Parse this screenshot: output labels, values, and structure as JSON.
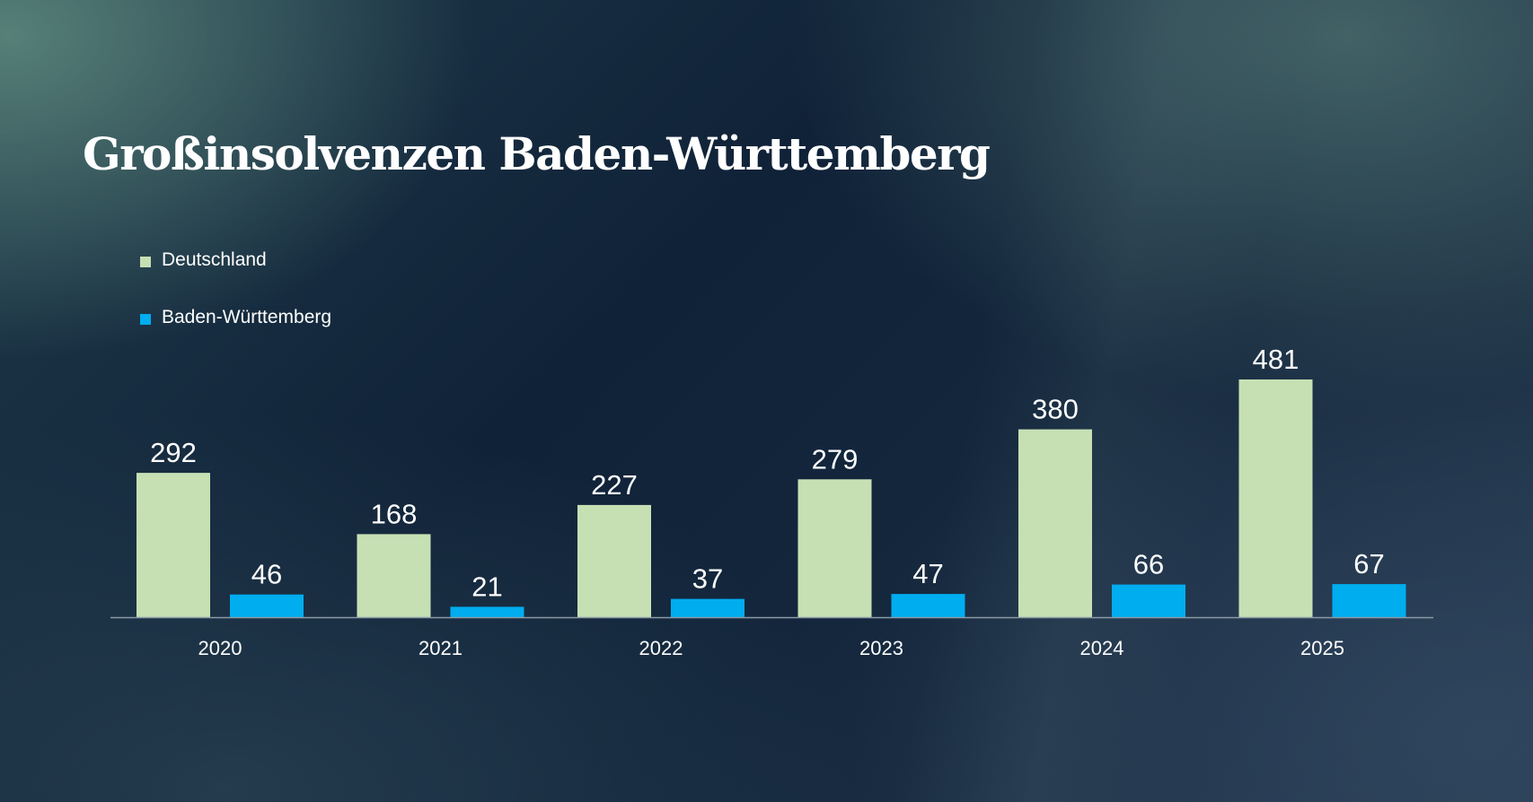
{
  "title": "Großinsolvenzen Baden-Württemberg",
  "chart_data": {
    "type": "bar",
    "title": "Großinsolvenzen Baden-Württemberg",
    "categories": [
      "2020",
      "2021",
      "2022",
      "2023",
      "2024",
      "2025"
    ],
    "series": [
      {
        "name": "Deutschland",
        "values": [
          292,
          168,
          227,
          279,
          380,
          481
        ],
        "color": "#c6e0b4"
      },
      {
        "name": "Baden-Württemberg",
        "values": [
          46,
          21,
          37,
          47,
          66,
          67
        ],
        "color": "#00adef"
      }
    ],
    "xlabel": "",
    "ylabel": "",
    "ylim": [
      0,
      481
    ],
    "grid": false,
    "legend": "top-left",
    "data_labels": true
  },
  "colors": {
    "text": "#ffffff",
    "axis": "#8a9aa6"
  }
}
